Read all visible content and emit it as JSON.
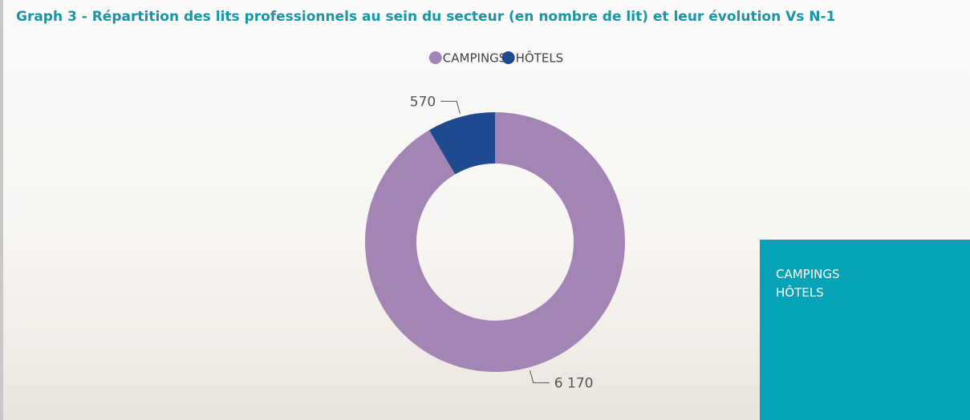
{
  "chart_data": {
    "type": "pie",
    "donut": true,
    "title": "Graph 3 - Répartition des lits professionnels au sein du secteur (en nombre de lit) et leur évolution Vs N-1",
    "categories": [
      "CAMPINGS",
      "HÔTELS"
    ],
    "values": [
      6170,
      570
    ],
    "value_labels": [
      "6 170",
      "570"
    ],
    "colors": [
      "#a285b5",
      "#1f4a8f"
    ],
    "legend": "top"
  }
}
